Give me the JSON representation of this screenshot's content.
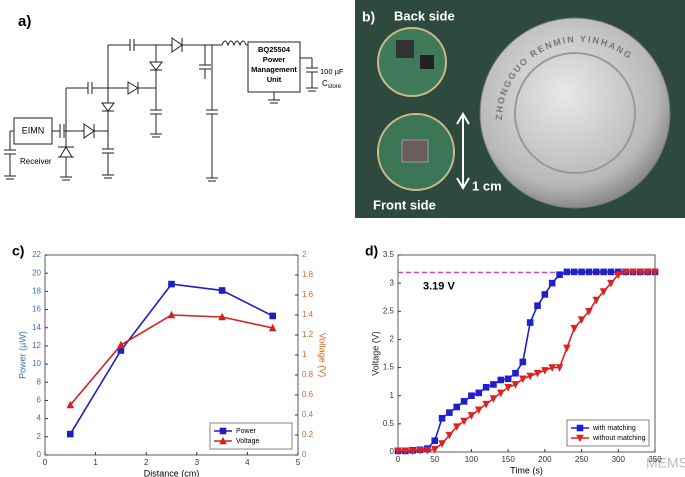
{
  "panel_a": {
    "label": "a)",
    "eimn": "EIMN",
    "receiver": "Receiver",
    "pmu_lines": [
      "BQ25504",
      "Power",
      "Management",
      "Unit"
    ],
    "cap_value": "100 µF",
    "cap_name": "C",
    "cap_subscript": "store"
  },
  "panel_b": {
    "label": "b)",
    "back": "Back side",
    "front": "Front side",
    "scale": "1 cm",
    "coin_text": "ZHONGGUO RENMIN YINHANG"
  },
  "watermark": "MEMS",
  "chart_data": [
    {
      "type": "line",
      "panel_label": "c)",
      "xlabel": "Distance (cm)",
      "ylabel": "Power (µW)",
      "y2label": "Voltage (V)",
      "x": [
        0.5,
        1.5,
        2.5,
        3.5,
        4.5
      ],
      "series": [
        {
          "name": "Power",
          "color": "#1f1fbf",
          "marker": "square",
          "values": [
            2.3,
            11.5,
            18.8,
            18.1,
            15.3
          ]
        },
        {
          "name": "Voltage",
          "color": "#d42020",
          "marker": "triangle-up",
          "axis": "y2",
          "values": [
            0.5,
            1.1,
            1.4,
            1.38,
            1.27
          ]
        }
      ],
      "xlim": [
        0,
        5
      ],
      "xticks": [
        0,
        1,
        2,
        3,
        4,
        5
      ],
      "ylim": [
        0,
        22
      ],
      "yticks": [
        0,
        2,
        4,
        6,
        8,
        10,
        12,
        14,
        16,
        18,
        20,
        22
      ],
      "y2lim": [
        0,
        2
      ],
      "y2ticks": [
        0,
        0.2,
        0.4,
        0.6,
        0.8,
        1,
        1.2,
        1.4,
        1.6,
        1.8,
        2
      ],
      "ylabel_color": "#3b6fc0",
      "y2label_color": "#d9641e",
      "grid": false,
      "legend": "lower right"
    },
    {
      "type": "line",
      "panel_label": "d)",
      "xlabel": "Time (s)",
      "ylabel": "Voltage (V)",
      "x": [
        0,
        10,
        20,
        30,
        40,
        50,
        60,
        70,
        80,
        90,
        100,
        110,
        120,
        130,
        140,
        150,
        160,
        170,
        180,
        190,
        200,
        210,
        220,
        230,
        240,
        250,
        260,
        270,
        280,
        290,
        300,
        310,
        320,
        330,
        340,
        350
      ],
      "series": [
        {
          "name": "with matching",
          "color": "#1f1fd0",
          "marker": "square",
          "values": [
            0.02,
            0.02,
            0.03,
            0.04,
            0.06,
            0.2,
            0.6,
            0.7,
            0.8,
            0.9,
            1.0,
            1.05,
            1.15,
            1.2,
            1.28,
            1.3,
            1.4,
            1.6,
            2.3,
            2.6,
            2.8,
            3.0,
            3.15,
            3.2,
            3.2,
            3.2,
            3.2,
            3.2,
            3.2,
            3.2,
            3.2,
            3.2,
            3.2,
            3.2,
            3.2,
            3.2
          ]
        },
        {
          "name": "without matching",
          "color": "#e02020",
          "marker": "triangle-down",
          "values": [
            0.02,
            0.02,
            0.02,
            0.03,
            0.03,
            0.05,
            0.15,
            0.3,
            0.45,
            0.55,
            0.65,
            0.75,
            0.85,
            0.95,
            1.05,
            1.15,
            1.2,
            1.3,
            1.35,
            1.4,
            1.45,
            1.5,
            1.5,
            1.85,
            2.2,
            2.35,
            2.5,
            2.7,
            2.85,
            3.0,
            3.15,
            3.2,
            3.2,
            3.2,
            3.2,
            3.2
          ]
        }
      ],
      "xlim": [
        0,
        350
      ],
      "xticks": [
        0,
        50,
        100,
        150,
        200,
        250,
        300,
        350
      ],
      "ylim": [
        0,
        3.5
      ],
      "yticks": [
        0,
        0.5,
        1,
        1.5,
        2,
        2.5,
        3,
        3.5
      ],
      "hline": {
        "value": 3.19,
        "label": "3.19 V",
        "color": "#d040d0"
      },
      "grid": false,
      "legend": "lower right"
    }
  ]
}
